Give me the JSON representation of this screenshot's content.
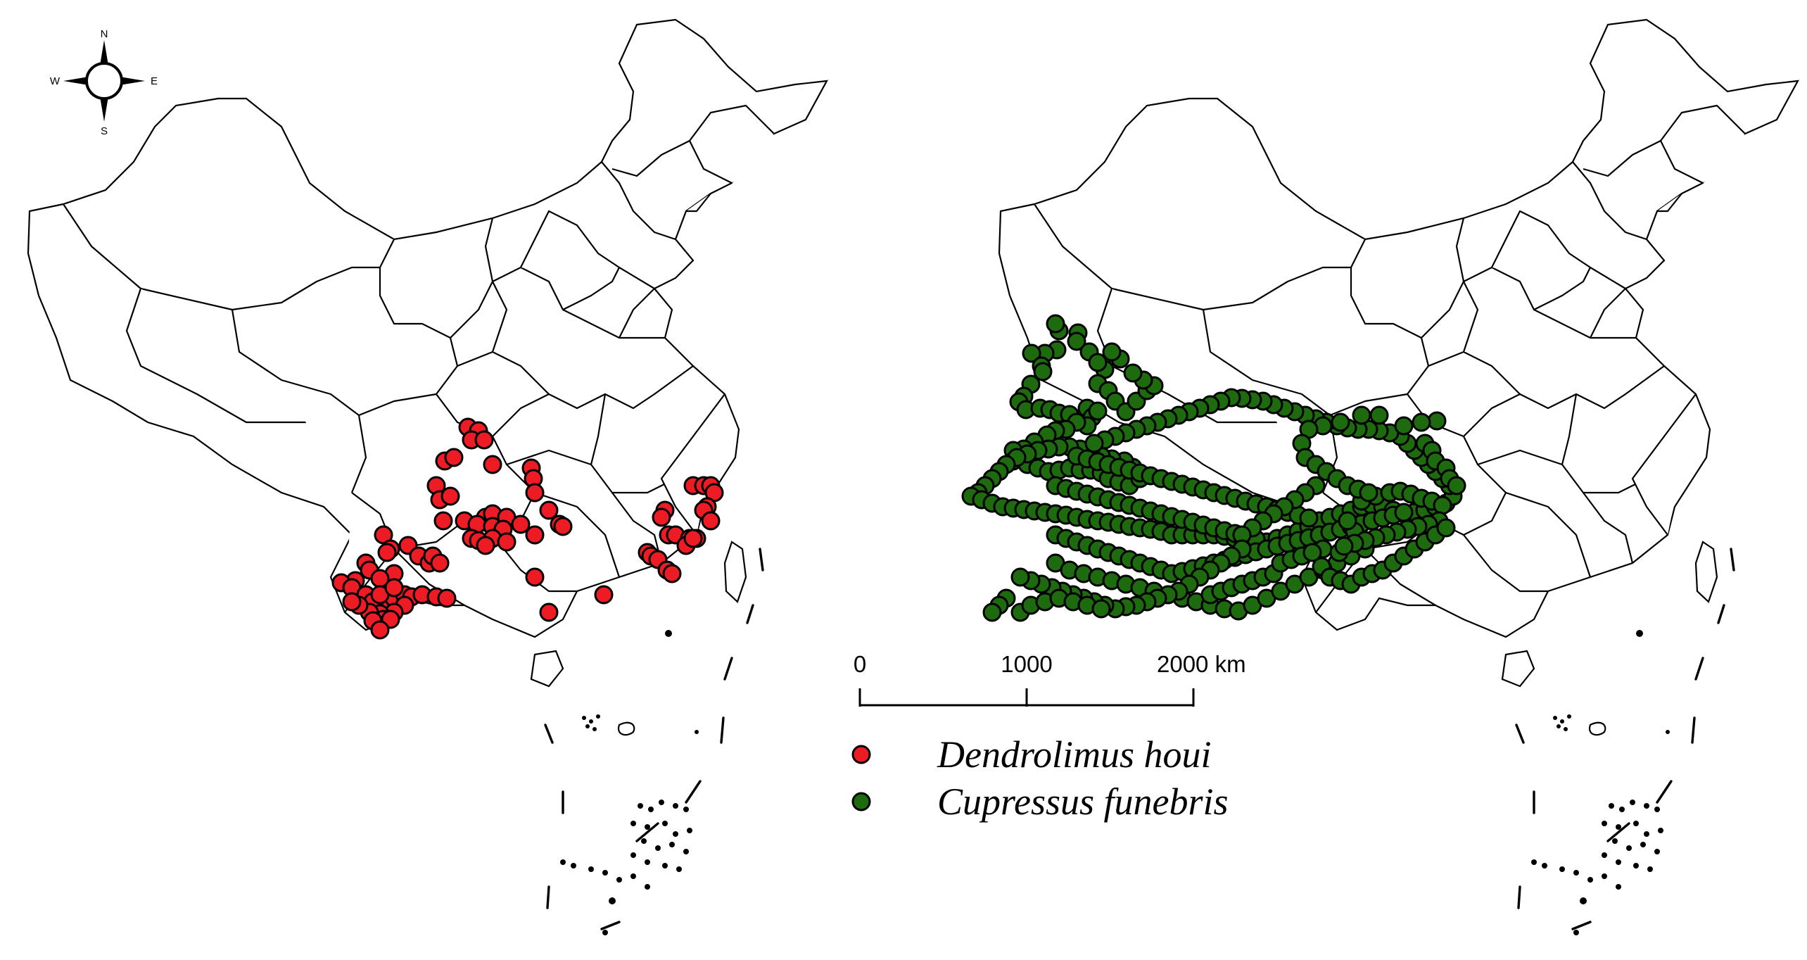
{
  "compass": {
    "n": "N",
    "e": "E",
    "s": "S",
    "w": "W"
  },
  "scale_bar": {
    "ticks": [
      "0",
      "1000",
      "2000 km"
    ]
  },
  "legend": [
    {
      "label": "Dendrolimus houi",
      "color": "#ed1c24"
    },
    {
      "label": "Cupressus funebris",
      "color": "#1e6b0f"
    }
  ],
  "colors": {
    "outline": "#000000",
    "background": "#ffffff"
  },
  "chart_data": {
    "type": "scatter",
    "maps": [
      {
        "panel": "left",
        "series": "Dendrolimus houi"
      },
      {
        "panel": "right",
        "series": "Cupressus funebris"
      }
    ]
  }
}
